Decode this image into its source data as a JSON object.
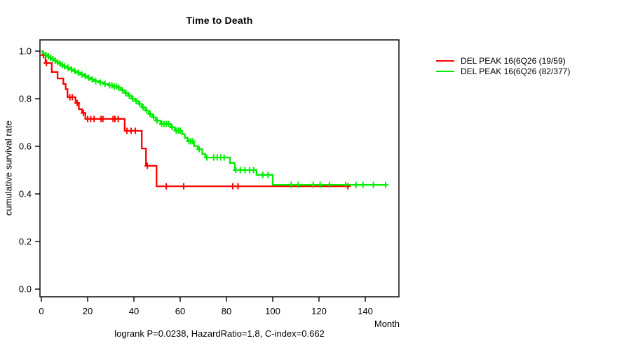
{
  "chart_data": {
    "type": "line",
    "subtype": "kaplan-meier-step",
    "title": "Time to Death",
    "xlabel": "Month",
    "ylabel": "cumulative survival rate",
    "annotation": "logrank P=0.0238, HazardRatio=1.8, C-index=0.662",
    "xlim": [
      0,
      154
    ],
    "ylim": [
      0.0,
      1.0
    ],
    "xticks": [
      0,
      20,
      40,
      60,
      80,
      100,
      120,
      140
    ],
    "yticks": [
      "0.0",
      "0.2",
      "0.4",
      "0.6",
      "0.8",
      "1.0"
    ],
    "grid": false,
    "legend_position": "right-outside",
    "axis_color": "#1a1a1a",
    "series": [
      {
        "name": "DEL PEAK 16(6Q26 (19/59)",
        "color": "#ff0000",
        "end_month": 133,
        "steps": [
          [
            0,
            1.0
          ],
          [
            0.7,
            0.983
          ],
          [
            1.8,
            0.95
          ],
          [
            4.5,
            0.912
          ],
          [
            7,
            0.885
          ],
          [
            9.5,
            0.862
          ],
          [
            10.5,
            0.84
          ],
          [
            11.3,
            0.806
          ],
          [
            14.8,
            0.782
          ],
          [
            16.2,
            0.756
          ],
          [
            17.6,
            0.74
          ],
          [
            19,
            0.715
          ],
          [
            36,
            0.665
          ],
          [
            43.4,
            0.591
          ],
          [
            45.2,
            0.518
          ],
          [
            49.8,
            0.432
          ]
        ],
        "censors": [
          0.9,
          2.2,
          12.3,
          13.4,
          15.5,
          18.2,
          20,
          21.3,
          22.8,
          25.8,
          26.6,
          31,
          31.8,
          33.2,
          37,
          38.8,
          40.6,
          45.8,
          54,
          61.5,
          82.7,
          85,
          132.5
        ]
      },
      {
        "name": "DEL PEAK 16(6Q26 (82/377)",
        "color": "#00ee00",
        "end_month": 149,
        "steps": [
          [
            0,
            1.0
          ],
          [
            0.8,
            0.99
          ],
          [
            1.6,
            0.984
          ],
          [
            2.4,
            0.978
          ],
          [
            3.2,
            0.972
          ],
          [
            4.2,
            0.966
          ],
          [
            5.2,
            0.96
          ],
          [
            6.2,
            0.954
          ],
          [
            7.2,
            0.948
          ],
          [
            8.4,
            0.942
          ],
          [
            9.6,
            0.936
          ],
          [
            11,
            0.93
          ],
          [
            12.5,
            0.923
          ],
          [
            14,
            0.916
          ],
          [
            15.5,
            0.909
          ],
          [
            17,
            0.902
          ],
          [
            18.5,
            0.895
          ],
          [
            20,
            0.888
          ],
          [
            21.5,
            0.881
          ],
          [
            23,
            0.874
          ],
          [
            25,
            0.868
          ],
          [
            27,
            0.862
          ],
          [
            29,
            0.856
          ],
          [
            31,
            0.851
          ],
          [
            33,
            0.846
          ],
          [
            34.5,
            0.836
          ],
          [
            36,
            0.824
          ],
          [
            37.5,
            0.812
          ],
          [
            39,
            0.8
          ],
          [
            40.5,
            0.79
          ],
          [
            42,
            0.778
          ],
          [
            43.5,
            0.764
          ],
          [
            45,
            0.75
          ],
          [
            46.5,
            0.736
          ],
          [
            48,
            0.722
          ],
          [
            49.5,
            0.708
          ],
          [
            51.5,
            0.694
          ],
          [
            56,
            0.68
          ],
          [
            57.7,
            0.666
          ],
          [
            60.8,
            0.651
          ],
          [
            62,
            0.636
          ],
          [
            63.2,
            0.621
          ],
          [
            66,
            0.601
          ],
          [
            67.6,
            0.588
          ],
          [
            69.5,
            0.568
          ],
          [
            70.8,
            0.553
          ],
          [
            81.5,
            0.53
          ],
          [
            83.6,
            0.5
          ],
          [
            93,
            0.48
          ],
          [
            100,
            0.438
          ]
        ],
        "censors": [
          2,
          3,
          4,
          5,
          6,
          7,
          8,
          9,
          10,
          11.5,
          13,
          14.5,
          16,
          17.5,
          19,
          20.5,
          22,
          23.5,
          25.5,
          27.5,
          29.5,
          30.5,
          31.5,
          32.5,
          33.5,
          35,
          36.5,
          38,
          39.5,
          41,
          42.5,
          44,
          45.5,
          47,
          48.5,
          50,
          52,
          53,
          54,
          55,
          56.5,
          58.3,
          59.2,
          60,
          63.8,
          64.6,
          65.4,
          68.2,
          71.5,
          74.5,
          76,
          77.5,
          79,
          84,
          86,
          88,
          90,
          91.7,
          95.7,
          98,
          108,
          111,
          117.5,
          120.5,
          124.5,
          131.5,
          136,
          139,
          143.5,
          148.8
        ]
      }
    ]
  }
}
